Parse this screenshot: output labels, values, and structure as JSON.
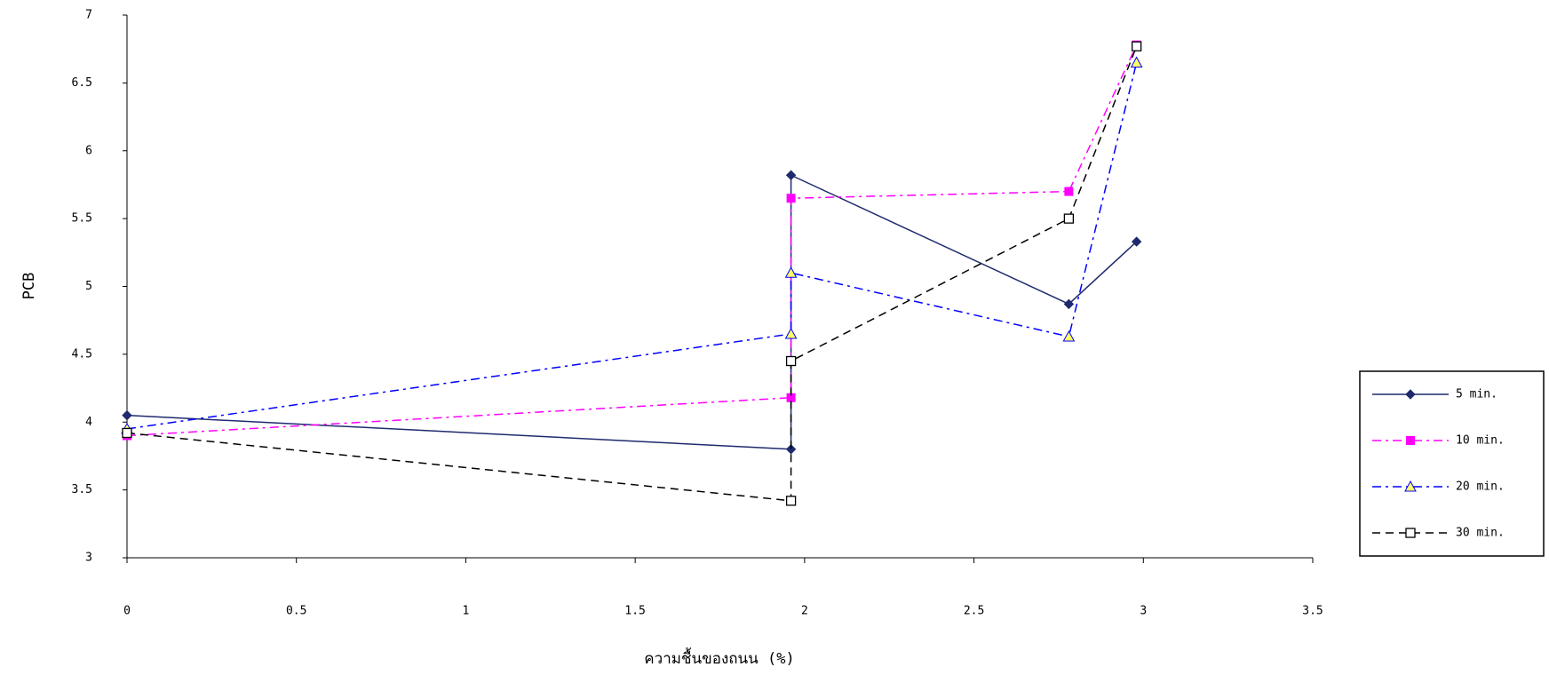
{
  "chart_data": {
    "type": "line",
    "x_label": "ความชื้นของถนน (%)",
    "y_label": "PCB",
    "x": [
      0,
      1.96,
      1.96,
      2.78,
      2.98
    ],
    "series": [
      {
        "name": "5 min.",
        "color": "#1f2a6e",
        "marker": "diamond",
        "line_style": "solid",
        "values": [
          4.05,
          3.8,
          5.82,
          4.87,
          5.33
        ]
      },
      {
        "name": "10 min.",
        "color": "#ff00ff",
        "marker": "square",
        "line_style": "dash-dot",
        "values": [
          3.9,
          4.18,
          5.65,
          5.7,
          6.78
        ]
      },
      {
        "name": "20 min.",
        "color": "#0000ff",
        "marker": "triangle",
        "line_style": "dash-dot",
        "values": [
          3.95,
          4.65,
          5.1,
          4.63,
          6.65
        ]
      },
      {
        "name": "30 min.",
        "color": "#000000",
        "marker": "open-square",
        "line_style": "dashed",
        "values": [
          3.92,
          3.42,
          4.45,
          5.5,
          6.77
        ]
      }
    ],
    "xlim": [
      0,
      3.5
    ],
    "xticks": [
      0,
      0.5,
      1,
      1.5,
      2,
      2.5,
      3,
      3.5
    ],
    "ylim": [
      3,
      7
    ],
    "yticks": [
      3,
      3.5,
      4,
      4.5,
      5,
      5.5,
      6,
      6.5,
      7
    ],
    "legend": "right"
  }
}
